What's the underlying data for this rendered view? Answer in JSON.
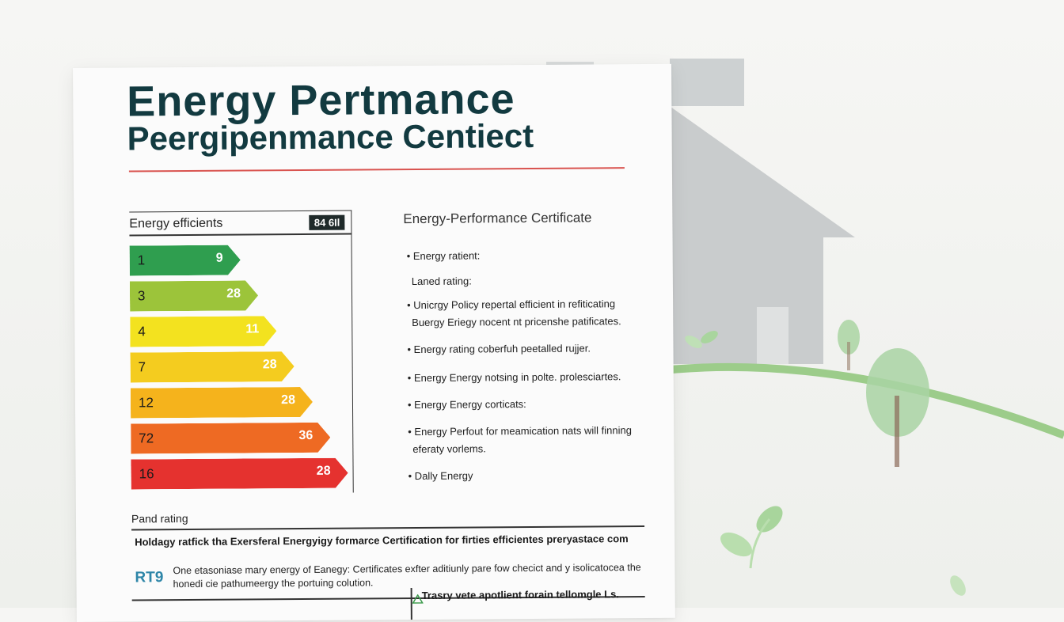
{
  "document": {
    "title_line1": "Energy Pertmance",
    "title_line2": "Peergipenmance Centiect",
    "rating_panel": {
      "title": "Energy efficients",
      "badge": "84 6Il",
      "bars": [
        {
          "left": "1",
          "right": "9",
          "color": "#2f9e4f",
          "width_pct": 0.5
        },
        {
          "left": "3",
          "right": "28",
          "color": "#9cc43a",
          "width_pct": 0.58
        },
        {
          "left": "4",
          "right": "11",
          "color": "#f3e21f",
          "width_pct": 0.66
        },
        {
          "left": "7",
          "right": "28",
          "color": "#f4cc1f",
          "width_pct": 0.74
        },
        {
          "left": "12",
          "right": "28",
          "color": "#f5b31c",
          "width_pct": 0.82
        },
        {
          "left": "72",
          "right": "36",
          "color": "#ee6a23",
          "width_pct": 0.9
        },
        {
          "left": "16",
          "right": "28",
          "color": "#e5322f",
          "width_pct": 0.98
        }
      ]
    },
    "side": {
      "title": "Energy-Performance Certificate",
      "items": [
        "• Energy ratient:",
        "Laned rating:",
        "• Unicrgy Policy repertal efficient in refiticating",
        "Buergy Eriegy nocent nt pricenshe patificates.",
        "• Energy rating coberfuh peetalled rujjer.",
        "• Energy Energy notsing in polte. prolesciartes.",
        "• Energy Energy corticats:",
        "• Energy Perfout for meamication nats will finning",
        "eferaty vorlems.",
        "• Dally Energy"
      ]
    },
    "bottom": {
      "rating_label": "Pand rating",
      "heading": "Holdagy ratfick tha Exersferal Energyigy formarce Certification for firties efficientes preryastace com",
      "code": "RT9",
      "text": "One etasoniase mary energy of Eanegy: Certificates exfter aditiunly pare fow checict and y isolicatocea the honedi cie pathumeergy the portuing colution.",
      "note": "Trasry vete apotlient forain tellomgle Ls."
    }
  }
}
